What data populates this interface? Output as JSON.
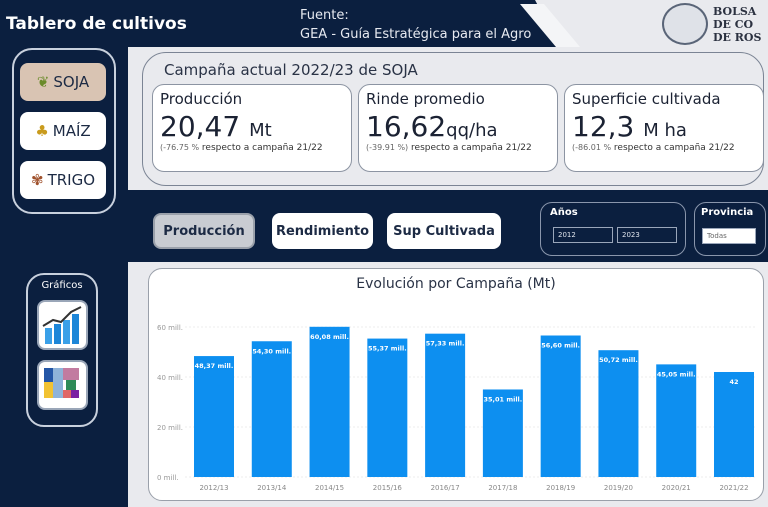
{
  "header": {
    "title": "Tablero de cultivos",
    "fuente_label": "Fuente:",
    "fuente_value": "GEA -  Guía Estratégica para el Agro",
    "logo_text": [
      "BOLSA",
      "DE CO",
      "DE ROS"
    ]
  },
  "sidebar": {
    "crops": [
      {
        "label": "SOJA",
        "icon": "soy-icon",
        "selected": true
      },
      {
        "label": "MAÍZ",
        "icon": "corn-icon",
        "selected": false
      },
      {
        "label": "TRIGO",
        "icon": "wheat-icon",
        "selected": false
      }
    ],
    "graficos_label": "Gráficos",
    "chart_buttons": [
      {
        "icon": "bar-chart-icon"
      },
      {
        "icon": "treemap-icon"
      }
    ]
  },
  "kpis": {
    "campaign_title": "Campaña actual 2022/23 de SOJA",
    "cards": [
      {
        "title": "Producción",
        "value": "20,47",
        "unit": "Mt",
        "change": "(-76.75 %",
        "suffix": " respecto a campaña 21/22"
      },
      {
        "title": "Rinde promedio",
        "value": "16,62",
        "unit": "qq/ha",
        "change": "(-39.91 %)",
        "suffix": " respecto a campaña 21/22"
      },
      {
        "title": "Superficie cultivada",
        "value": "12,3",
        "unit": "M ha",
        "change": "(-86.01 %",
        "suffix": " respecto a campaña 21/22"
      }
    ]
  },
  "tabs": [
    {
      "label": "Producción",
      "selected": true
    },
    {
      "label": "Rendimiento",
      "selected": false
    },
    {
      "label": "Sup Cultivada",
      "selected": false
    }
  ],
  "filters": {
    "anios_label": "Años",
    "anio_from": "2012",
    "anio_to": "2023",
    "provincia_label": "Provincia",
    "provincia_value": "Todas"
  },
  "colors": {
    "navy": "#0b1f3f",
    "bar": "#0d8ff0"
  },
  "chart_data": {
    "type": "bar",
    "title": "Evolución por Campaña (Mt)",
    "categories": [
      "2012/13",
      "2013/14",
      "2014/15",
      "2015/16",
      "2016/17",
      "2017/18",
      "2018/19",
      "2019/20",
      "2020/21",
      "2021/22"
    ],
    "values": [
      48.37,
      54.3,
      60.08,
      55.37,
      57.33,
      35.01,
      56.6,
      50.72,
      45.05,
      42
    ],
    "labels": [
      "48,37 mill.",
      "54,30 mill.",
      "60,08 mill.",
      "55,37 mill.",
      "57,33 mill.",
      "35,01 mill.",
      "56,60 mill.",
      "50,72 mill.",
      "45,05 mill.",
      "42"
    ],
    "yticks": [
      "0 mill.",
      "20 mill.",
      "40 mill.",
      "60 mill."
    ],
    "ytick_values": [
      0,
      20,
      40,
      60
    ],
    "ylim": [
      0,
      60
    ],
    "grid": true
  }
}
